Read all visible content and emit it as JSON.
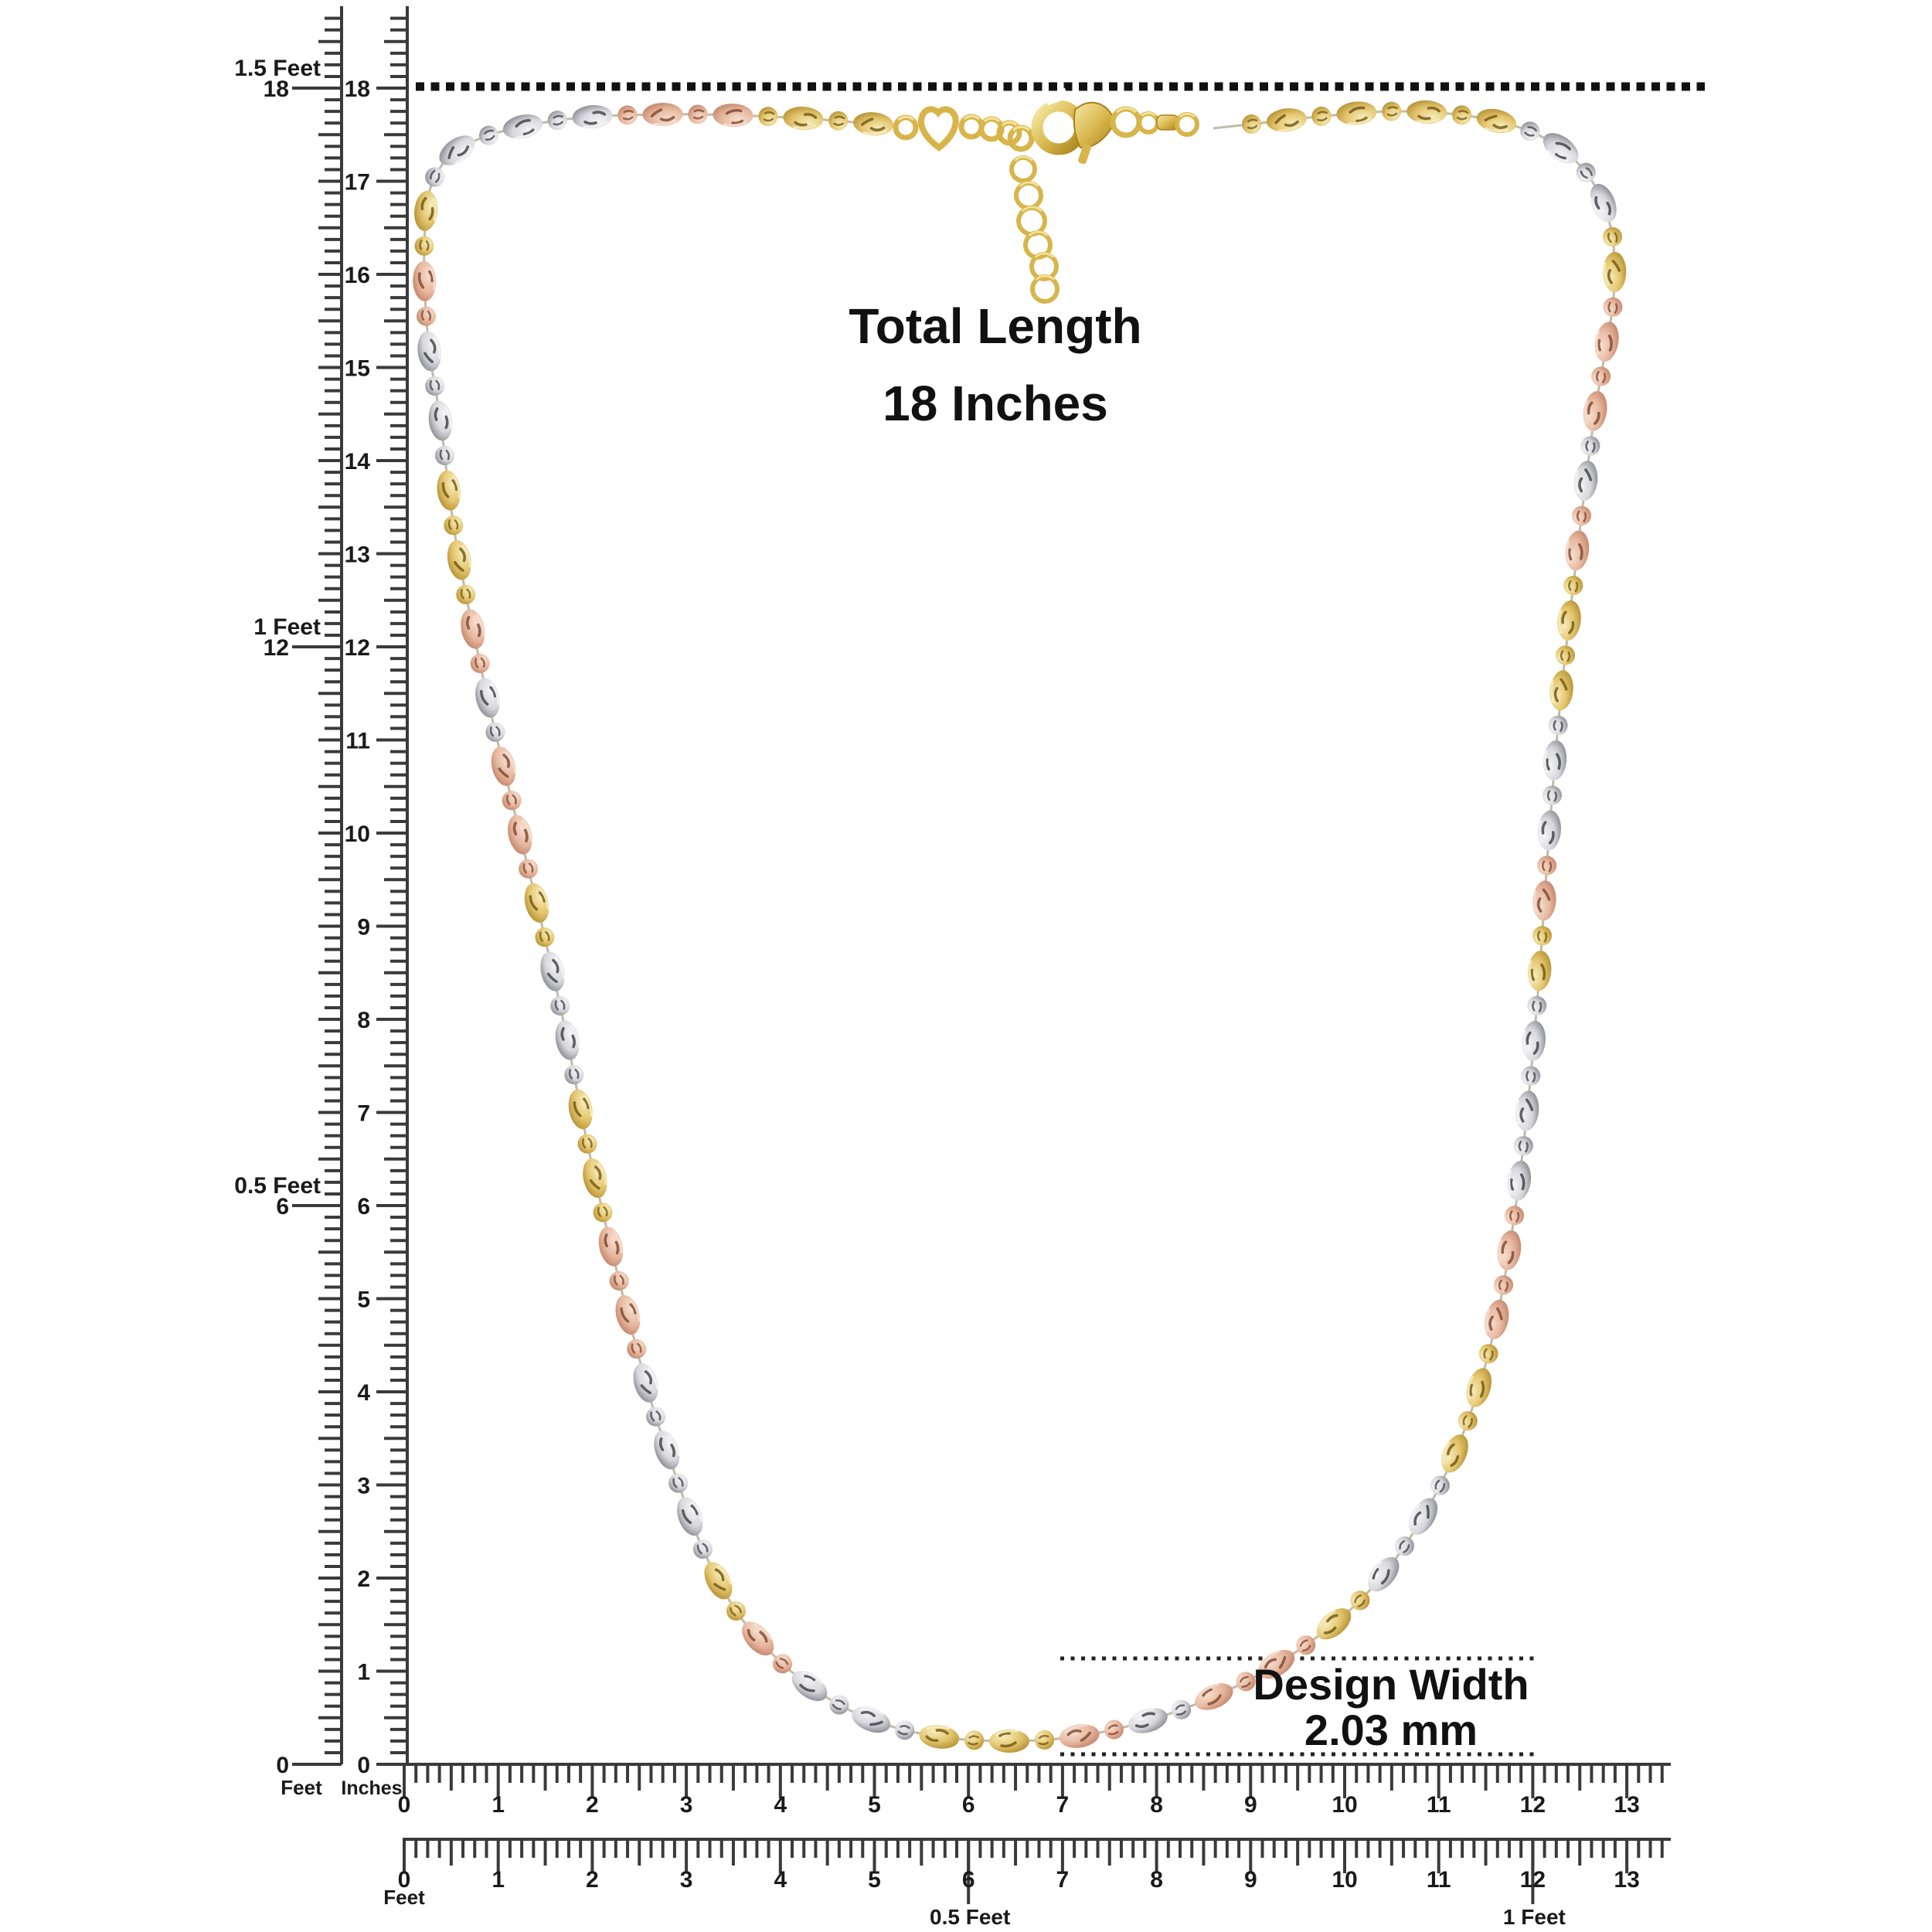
{
  "page": {
    "background": "#ffffff"
  },
  "annotations": {
    "total_length": {
      "line1": "Total Length",
      "line2": "18 Inches"
    },
    "design_width": {
      "line1": "Design Width",
      "line2": "2.03 mm"
    }
  },
  "rulers": {
    "vertical_feet": {
      "unit_label": "Feet",
      "zero_label": "0",
      "marks": [
        {
          "number": "18",
          "label": "1.5 Feet",
          "inches": 18
        },
        {
          "number": "12",
          "label": "1 Feet",
          "inches": 12
        },
        {
          "number": "6",
          "label": "0.5 Feet",
          "inches": 6
        }
      ]
    },
    "vertical_inches": {
      "unit_label": "Inches",
      "numbers": [
        "0",
        "1",
        "2",
        "3",
        "4",
        "5",
        "6",
        "7",
        "8",
        "9",
        "10",
        "11",
        "12",
        "13",
        "14",
        "15",
        "16",
        "17",
        "18"
      ]
    },
    "horizontal_inches": {
      "numbers": [
        "0",
        "1",
        "2",
        "3",
        "4",
        "5",
        "6",
        "7",
        "8",
        "9",
        "10",
        "11",
        "12",
        "13"
      ]
    },
    "horizontal_feet": {
      "numbers": [
        "0",
        "1",
        "2",
        "3",
        "4",
        "5",
        "6",
        "7",
        "8",
        "9",
        "10",
        "11",
        "12",
        "13"
      ],
      "unit_label": "Feet",
      "annotations": [
        {
          "label": "0.5 Feet",
          "inches": 6
        },
        {
          "label": "1 Feet",
          "inches": 12
        }
      ]
    }
  },
  "dotted_guides": {
    "length_line_color": "#111111",
    "width_line_color": "#222222"
  },
  "necklace": {
    "type": "tri-color diamond-cut oval and ball bead chain with lobster clasp and ring extender",
    "colors": {
      "silver": {
        "base": "#d7d7dc",
        "light": "#f5f5f7",
        "dark": "#83838c",
        "mark": "#3c3c44"
      },
      "gold": {
        "base": "#e3c46c",
        "light": "#f7edbd",
        "dark": "#b08c2e",
        "mark": "#6d5512"
      },
      "rose": {
        "base": "#e6b79e",
        "light": "#f7dfd0",
        "dark": "#c08066",
        "mark": "#7c452e"
      },
      "clasp": {
        "base": "#d8b54b",
        "light": "#f6e9a4",
        "dark": "#a8821d"
      }
    },
    "sequence": [
      "gold",
      "gold",
      "rose",
      "rose",
      "silver",
      "silver",
      "silver",
      "gold",
      "rose",
      "silver",
      "silver",
      "gold",
      "gold",
      "rose",
      "silver",
      "rose",
      "rose",
      "gold",
      "silver",
      "silver"
    ]
  }
}
